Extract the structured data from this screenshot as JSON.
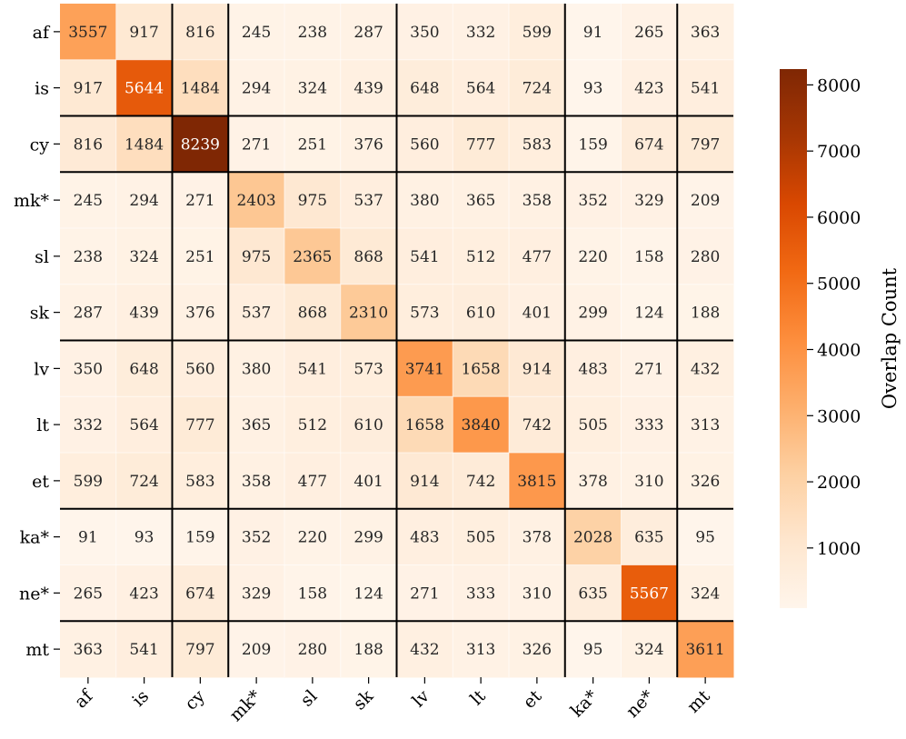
{
  "chart_data": {
    "type": "heatmap",
    "title": "",
    "xlabel": "",
    "ylabel": "",
    "categories": [
      "af",
      "is",
      "cy",
      "mk*",
      "sl",
      "sk",
      "lv",
      "lt",
      "et",
      "ka*",
      "ne*",
      "mt"
    ],
    "matrix": [
      [
        3557,
        917,
        816,
        245,
        238,
        287,
        350,
        332,
        599,
        91,
        265,
        363
      ],
      [
        917,
        5644,
        1484,
        294,
        324,
        439,
        648,
        564,
        724,
        93,
        423,
        541
      ],
      [
        816,
        1484,
        8239,
        271,
        251,
        376,
        560,
        777,
        583,
        159,
        674,
        797
      ],
      [
        245,
        294,
        271,
        2403,
        975,
        537,
        380,
        365,
        358,
        352,
        329,
        209
      ],
      [
        238,
        324,
        251,
        975,
        2365,
        868,
        541,
        512,
        477,
        220,
        158,
        280
      ],
      [
        287,
        439,
        376,
        537,
        868,
        2310,
        573,
        610,
        401,
        299,
        124,
        188
      ],
      [
        350,
        648,
        560,
        380,
        541,
        573,
        3741,
        1658,
        914,
        483,
        271,
        432
      ],
      [
        332,
        564,
        777,
        365,
        512,
        610,
        1658,
        3840,
        742,
        505,
        333,
        313
      ],
      [
        599,
        724,
        583,
        358,
        477,
        401,
        914,
        742,
        3815,
        378,
        310,
        326
      ],
      [
        91,
        93,
        159,
        352,
        220,
        299,
        483,
        505,
        378,
        2028,
        635,
        95
      ],
      [
        265,
        423,
        674,
        329,
        158,
        124,
        271,
        333,
        310,
        635,
        5567,
        324
      ],
      [
        363,
        541,
        797,
        209,
        280,
        188,
        432,
        313,
        326,
        95,
        324,
        3611
      ]
    ],
    "group_boundaries_after_index": [
      1,
      2,
      5,
      8,
      10
    ],
    "colorbar": {
      "label": "Overlap Count",
      "min": 91,
      "max": 8239,
      "ticks": [
        1000,
        2000,
        3000,
        4000,
        5000,
        6000,
        7000,
        8000
      ],
      "colormap": "Oranges"
    },
    "grid": false
  }
}
